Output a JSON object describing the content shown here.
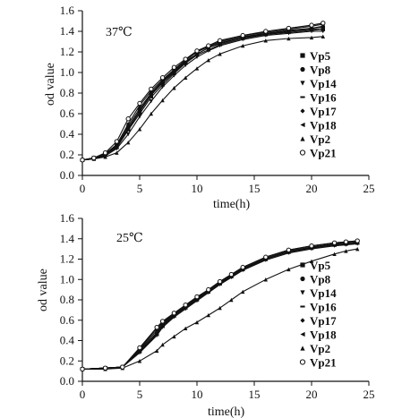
{
  "chart_data": [
    {
      "type": "scatter",
      "title": "37℃",
      "xlabel": "time(h)",
      "ylabel": "od value",
      "xlim": [
        0,
        25
      ],
      "ylim": [
        0.0,
        1.6
      ],
      "xticks": [
        "0",
        "5",
        "10",
        "15",
        "20",
        "25"
      ],
      "yticks": [
        "0.0",
        "0.2",
        "0.4",
        "0.6",
        "0.8",
        "1.0",
        "1.2",
        "1.4",
        "1.6"
      ],
      "grid": false,
      "legend_position": "right",
      "series": [
        {
          "name": "Vp5",
          "marker": "square",
          "x": [
            0,
            1,
            2,
            3,
            4,
            5,
            6,
            7,
            8,
            9,
            10,
            11,
            12,
            14,
            16,
            18,
            20,
            21
          ],
          "y": [
            0.15,
            0.17,
            0.2,
            0.28,
            0.45,
            0.62,
            0.78,
            0.9,
            1.0,
            1.1,
            1.18,
            1.24,
            1.28,
            1.34,
            1.37,
            1.4,
            1.42,
            1.42
          ]
        },
        {
          "name": "Vp8",
          "marker": "circle",
          "x": [
            0,
            1,
            2,
            3,
            4,
            5,
            6,
            7,
            8,
            9,
            10,
            11,
            12,
            14,
            16,
            18,
            20,
            21
          ],
          "y": [
            0.15,
            0.17,
            0.21,
            0.3,
            0.48,
            0.65,
            0.8,
            0.92,
            1.02,
            1.12,
            1.2,
            1.25,
            1.3,
            1.35,
            1.38,
            1.4,
            1.43,
            1.44
          ]
        },
        {
          "name": "Vp14",
          "marker": "triangle-down",
          "x": [
            0,
            1,
            2,
            3,
            4,
            5,
            6,
            7,
            8,
            9,
            10,
            11,
            12,
            14,
            16,
            18,
            20,
            21
          ],
          "y": [
            0.15,
            0.16,
            0.19,
            0.26,
            0.4,
            0.57,
            0.72,
            0.86,
            0.97,
            1.07,
            1.15,
            1.21,
            1.26,
            1.32,
            1.36,
            1.38,
            1.4,
            1.4
          ]
        },
        {
          "name": "Vp16",
          "marker": "dash",
          "x": [
            0,
            1,
            2,
            3,
            4,
            5,
            6,
            7,
            8,
            9,
            10,
            11,
            12,
            14,
            16,
            18,
            20,
            21
          ],
          "y": [
            0.15,
            0.17,
            0.2,
            0.29,
            0.46,
            0.63,
            0.79,
            0.91,
            1.01,
            1.11,
            1.18,
            1.24,
            1.29,
            1.34,
            1.38,
            1.41,
            1.43,
            1.45
          ]
        },
        {
          "name": "Vp17",
          "marker": "diamond",
          "x": [
            0,
            1,
            2,
            3,
            4,
            5,
            6,
            7,
            8,
            9,
            10,
            11,
            12,
            14,
            16,
            18,
            20,
            21
          ],
          "y": [
            0.15,
            0.17,
            0.21,
            0.3,
            0.5,
            0.68,
            0.82,
            0.93,
            1.03,
            1.12,
            1.2,
            1.26,
            1.31,
            1.36,
            1.39,
            1.42,
            1.45,
            1.47
          ]
        },
        {
          "name": "Vp18",
          "marker": "triangle-left",
          "x": [
            0,
            1,
            2,
            3,
            4,
            5,
            6,
            7,
            8,
            9,
            10,
            11,
            12,
            14,
            16,
            18,
            20,
            21
          ],
          "y": [
            0.15,
            0.16,
            0.2,
            0.27,
            0.44,
            0.6,
            0.76,
            0.88,
            0.99,
            1.09,
            1.17,
            1.22,
            1.27,
            1.33,
            1.37,
            1.39,
            1.41,
            1.42
          ]
        },
        {
          "name": "Vp2",
          "marker": "triangle-up",
          "x": [
            0,
            1,
            2,
            3,
            4,
            5,
            6,
            7,
            8,
            9,
            10,
            11,
            12,
            14,
            16,
            18,
            20,
            21
          ],
          "y": [
            0.15,
            0.16,
            0.18,
            0.22,
            0.32,
            0.45,
            0.6,
            0.73,
            0.85,
            0.95,
            1.04,
            1.12,
            1.18,
            1.26,
            1.31,
            1.33,
            1.34,
            1.35
          ]
        },
        {
          "name": "Vp21",
          "marker": "circle-open",
          "x": [
            0,
            1,
            2,
            3,
            4,
            5,
            6,
            7,
            8,
            9,
            10,
            11,
            12,
            14,
            16,
            18,
            20,
            21
          ],
          "y": [
            0.15,
            0.17,
            0.22,
            0.33,
            0.55,
            0.7,
            0.84,
            0.95,
            1.05,
            1.13,
            1.21,
            1.26,
            1.31,
            1.36,
            1.4,
            1.43,
            1.46,
            1.48
          ]
        }
      ]
    },
    {
      "type": "scatter",
      "title": "25℃",
      "xlabel": "time(h)",
      "ylabel": "od value",
      "xlim": [
        0,
        25
      ],
      "ylim": [
        0.0,
        1.6
      ],
      "xticks": [
        "0",
        "5",
        "10",
        "15",
        "20",
        "25"
      ],
      "yticks": [
        "0.0",
        "0.2",
        "0.4",
        "0.6",
        "0.8",
        "1.0",
        "1.2",
        "1.4",
        "1.6"
      ],
      "grid": false,
      "legend_position": "right",
      "series": [
        {
          "name": "Vp5",
          "marker": "square",
          "x": [
            0,
            2,
            3.5,
            5,
            6.5,
            7,
            8,
            9,
            10,
            11,
            12,
            13,
            14,
            16,
            18,
            20,
            22,
            23,
            24
          ],
          "y": [
            0.12,
            0.13,
            0.14,
            0.3,
            0.47,
            0.55,
            0.65,
            0.73,
            0.81,
            0.88,
            0.96,
            1.03,
            1.1,
            1.2,
            1.27,
            1.31,
            1.34,
            1.35,
            1.36
          ]
        },
        {
          "name": "Vp8",
          "marker": "circle",
          "x": [
            0,
            2,
            3.5,
            5,
            6.5,
            7,
            8,
            9,
            10,
            11,
            12,
            13,
            14,
            16,
            18,
            20,
            22,
            23,
            24
          ],
          "y": [
            0.12,
            0.13,
            0.14,
            0.32,
            0.52,
            0.58,
            0.66,
            0.74,
            0.82,
            0.89,
            0.97,
            1.04,
            1.11,
            1.21,
            1.28,
            1.32,
            1.35,
            1.36,
            1.37
          ]
        },
        {
          "name": "Vp14",
          "marker": "triangle-down",
          "x": [
            0,
            2,
            3.5,
            5,
            6.5,
            7,
            8,
            9,
            10,
            11,
            12,
            13,
            14,
            16,
            18,
            20,
            22,
            23,
            24
          ],
          "y": [
            0.12,
            0.13,
            0.14,
            0.28,
            0.45,
            0.53,
            0.63,
            0.71,
            0.79,
            0.87,
            0.95,
            1.02,
            1.09,
            1.19,
            1.26,
            1.3,
            1.33,
            1.34,
            1.35
          ]
        },
        {
          "name": "Vp16",
          "marker": "dash",
          "x": [
            0,
            2,
            3.5,
            5,
            6.5,
            7,
            8,
            9,
            10,
            11,
            12,
            13,
            14,
            16,
            18,
            20,
            22,
            23,
            24
          ],
          "y": [
            0.12,
            0.13,
            0.14,
            0.3,
            0.48,
            0.56,
            0.65,
            0.73,
            0.81,
            0.88,
            0.96,
            1.03,
            1.1,
            1.2,
            1.27,
            1.31,
            1.34,
            1.35,
            1.36
          ]
        },
        {
          "name": "Vp17",
          "marker": "diamond",
          "x": [
            0,
            2,
            3.5,
            5,
            6.5,
            7,
            8,
            9,
            10,
            11,
            12,
            13,
            14,
            16,
            18,
            20,
            22,
            23,
            24
          ],
          "y": [
            0.12,
            0.13,
            0.14,
            0.31,
            0.5,
            0.57,
            0.66,
            0.74,
            0.82,
            0.9,
            0.98,
            1.05,
            1.12,
            1.22,
            1.29,
            1.33,
            1.36,
            1.37,
            1.38
          ]
        },
        {
          "name": "Vp18",
          "marker": "triangle-left",
          "x": [
            0,
            2,
            3.5,
            5,
            6.5,
            7,
            8,
            9,
            10,
            11,
            12,
            13,
            14,
            16,
            18,
            20,
            22,
            23,
            24
          ],
          "y": [
            0.12,
            0.13,
            0.14,
            0.29,
            0.46,
            0.54,
            0.64,
            0.72,
            0.8,
            0.88,
            0.96,
            1.03,
            1.1,
            1.2,
            1.27,
            1.31,
            1.34,
            1.35,
            1.36
          ]
        },
        {
          "name": "Vp2",
          "marker": "triangle-up",
          "x": [
            0,
            2,
            3.5,
            5,
            6.5,
            7,
            8,
            9,
            10,
            11,
            12,
            13,
            14,
            16,
            18,
            20,
            22,
            23,
            24
          ],
          "y": [
            0.12,
            0.12,
            0.13,
            0.2,
            0.3,
            0.36,
            0.44,
            0.52,
            0.58,
            0.65,
            0.72,
            0.8,
            0.88,
            1.0,
            1.1,
            1.18,
            1.25,
            1.28,
            1.3
          ]
        },
        {
          "name": "Vp21",
          "marker": "circle-open",
          "x": [
            0,
            2,
            3.5,
            5,
            6.5,
            7,
            8,
            9,
            10,
            11,
            12,
            13,
            14,
            16,
            18,
            20,
            22,
            23,
            24
          ],
          "y": [
            0.12,
            0.13,
            0.14,
            0.33,
            0.53,
            0.59,
            0.67,
            0.75,
            0.83,
            0.9,
            0.98,
            1.05,
            1.12,
            1.22,
            1.29,
            1.33,
            1.36,
            1.37,
            1.38
          ]
        }
      ]
    }
  ]
}
